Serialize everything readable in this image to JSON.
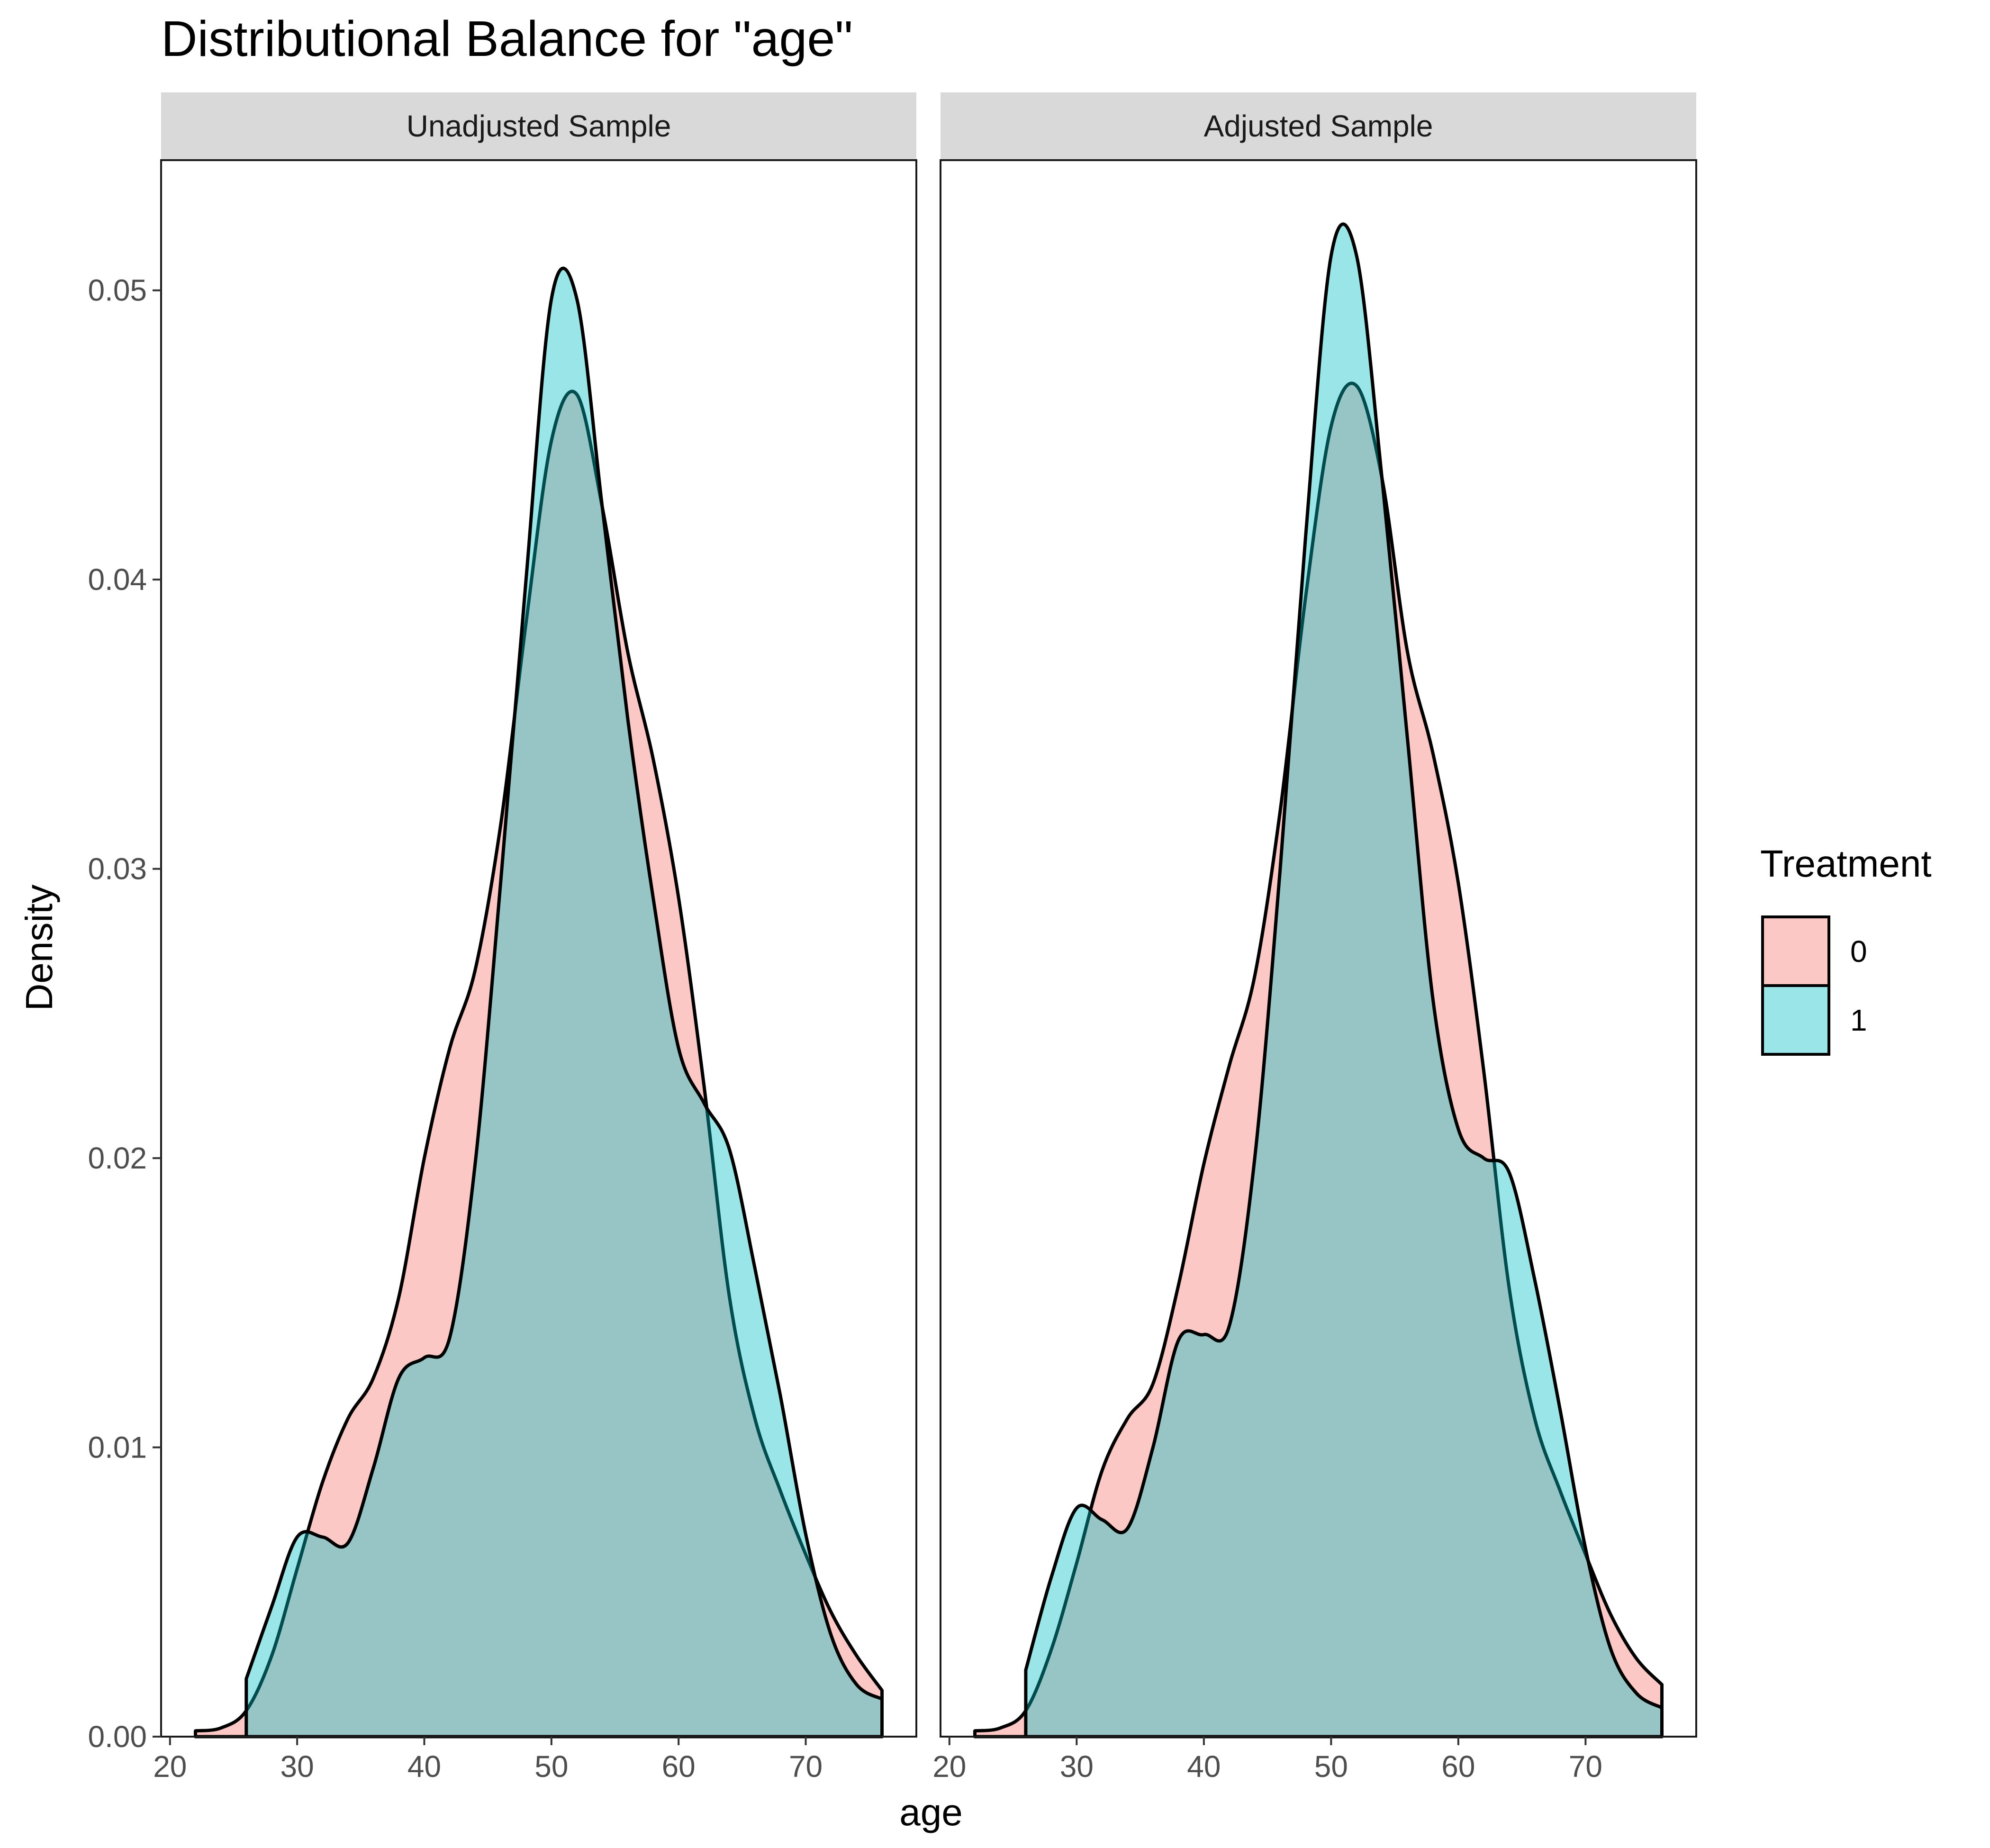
{
  "chart_data": {
    "type": "area",
    "subtype": "density",
    "title": "Distributional Balance for \"age\"",
    "xlabel": "age",
    "ylabel": "Density",
    "xlim": [
      19.3,
      78.7
    ],
    "ylim": [
      0,
      0.0545
    ],
    "x_ticks": [
      20,
      30,
      40,
      50,
      60,
      70
    ],
    "x_tick_labels": [
      "20",
      "30",
      "40",
      "50",
      "60",
      "70"
    ],
    "y_ticks": [
      0.0,
      0.01,
      0.02,
      0.03,
      0.04,
      0.05
    ],
    "y_tick_labels": [
      "0.00",
      "0.01",
      "0.02",
      "0.03",
      "0.04",
      "0.05"
    ],
    "grid": false,
    "legend": {
      "title": "Treatment",
      "position": "right",
      "entries": [
        {
          "label": "0",
          "color": "#F8766D"
        },
        {
          "label": "1",
          "color": "#00BFC4"
        }
      ]
    },
    "fill_opacity": 0.4,
    "panels": [
      {
        "label": "Unadjusted Sample",
        "series": [
          {
            "name": "0",
            "color": "#F8766D",
            "x": [
              22,
              24,
              26,
              28,
              30,
              32,
              34,
              36,
              38,
              40,
              42,
              44,
              46,
              48,
              50,
              52,
              54,
              56,
              58,
              60,
              62,
              64,
              66,
              68,
              70,
              72,
              74,
              76
            ],
            "y": [
              0.0002,
              0.0003,
              0.0009,
              0.0028,
              0.0058,
              0.0088,
              0.011,
              0.0124,
              0.0152,
              0.02,
              0.0238,
              0.0265,
              0.0315,
              0.0385,
              0.0448,
              0.0464,
              0.0425,
              0.0375,
              0.0338,
              0.029,
              0.0225,
              0.0152,
              0.011,
              0.0085,
              0.0063,
              0.0043,
              0.0028,
              0.0016
            ]
          },
          {
            "name": "1",
            "color": "#00BFC4",
            "x": [
              26,
              28,
              30,
              32,
              34,
              36,
              38,
              40,
              42,
              44,
              46,
              48,
              50,
              52,
              54,
              56,
              58,
              60,
              62,
              64,
              66,
              68,
              70,
              72,
              74,
              76
            ],
            "y": [
              0.002,
              0.0045,
              0.0069,
              0.0069,
              0.0067,
              0.0093,
              0.0124,
              0.0131,
              0.0138,
              0.0198,
              0.0295,
              0.04,
              0.0497,
              0.0497,
              0.0425,
              0.0352,
              0.029,
              0.0238,
              0.0219,
              0.0203,
              0.0162,
              0.0118,
              0.007,
              0.0035,
              0.0018,
              0.0013
            ]
          }
        ]
      },
      {
        "label": "Adjusted Sample",
        "series": [
          {
            "name": "0",
            "color": "#F8766D",
            "x": [
              22,
              24,
              26,
              28,
              30,
              32,
              34,
              36,
              38,
              40,
              42,
              44,
              46,
              48,
              50,
              52,
              54,
              56,
              58,
              60,
              62,
              64,
              66,
              68,
              70,
              72,
              74,
              76
            ],
            "y": [
              0.0002,
              0.0003,
              0.0009,
              0.003,
              0.006,
              0.0092,
              0.011,
              0.0122,
              0.0156,
              0.0198,
              0.0232,
              0.0263,
              0.032,
              0.0394,
              0.0453,
              0.0467,
              0.0435,
              0.0375,
              0.034,
              0.0295,
              0.023,
              0.0155,
              0.011,
              0.0085,
              0.0063,
              0.0042,
              0.0027,
              0.0018
            ]
          },
          {
            "name": "1",
            "color": "#00BFC4",
            "x": [
              26,
              28,
              30,
              32,
              34,
              36,
              38,
              40,
              42,
              44,
              46,
              48,
              50,
              52,
              54,
              56,
              58,
              60,
              62,
              64,
              66,
              68,
              70,
              72,
              74,
              76
            ],
            "y": [
              0.0023,
              0.0055,
              0.0079,
              0.0075,
              0.0072,
              0.01,
              0.0137,
              0.0139,
              0.0142,
              0.02,
              0.03,
              0.0415,
              0.0512,
              0.0512,
              0.0435,
              0.0345,
              0.0255,
              0.021,
              0.02,
              0.0195,
              0.0158,
              0.0113,
              0.0065,
              0.003,
              0.0015,
              0.001
            ]
          }
        ]
      }
    ]
  }
}
